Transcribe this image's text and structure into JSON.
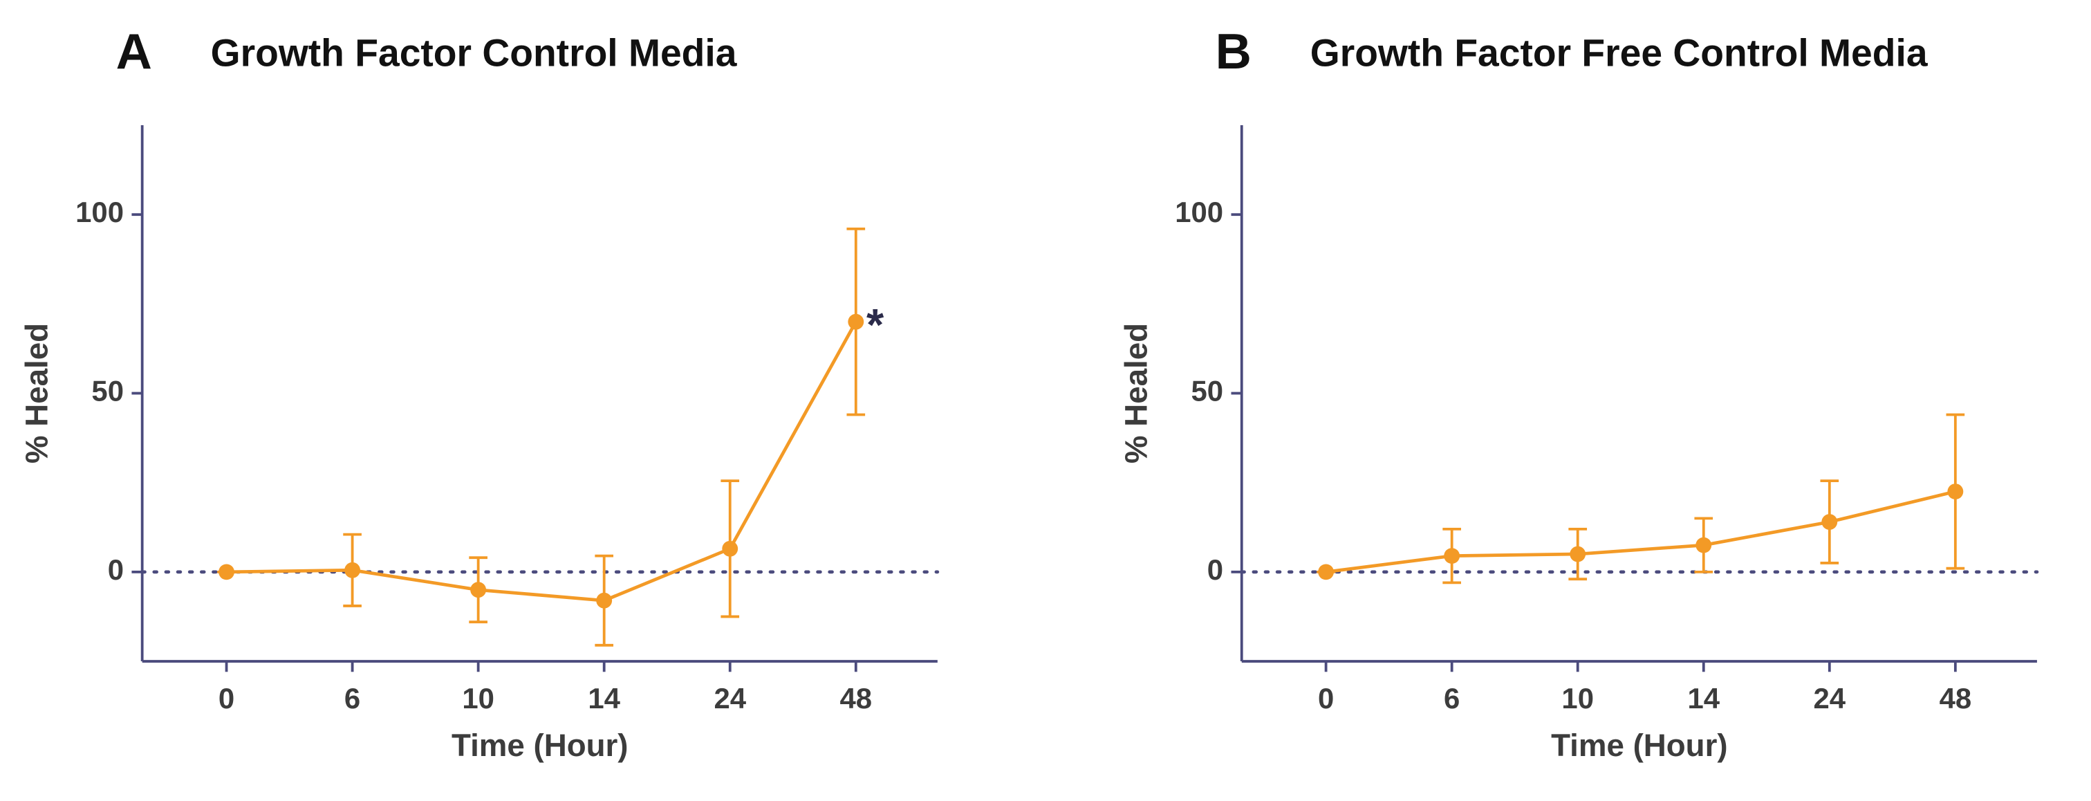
{
  "chart_data": [
    {
      "type": "line",
      "panel_label": "A",
      "title": "Growth Factor Control Media",
      "xlabel": "Time (Hour)",
      "ylabel": "% Healed",
      "categories": [
        "0",
        "6",
        "10",
        "14",
        "24",
        "48"
      ],
      "series": [
        {
          "color": "#f39a26",
          "values": [
            0,
            0.5,
            -5,
            -8,
            6.5,
            70
          ],
          "errors": [
            0,
            10,
            9,
            12.5,
            19,
            26
          ]
        }
      ],
      "ylim": [
        -25,
        125
      ],
      "yticks": [
        0,
        50,
        100
      ],
      "reference_line": 0,
      "annotations": [
        {
          "text": "*",
          "category": "48"
        }
      ]
    },
    {
      "type": "line",
      "panel_label": "B",
      "title": "Growth Factor Free Control Media",
      "xlabel": "Time (Hour)",
      "ylabel": "% Healed",
      "categories": [
        "0",
        "6",
        "10",
        "14",
        "24",
        "48"
      ],
      "series": [
        {
          "color": "#f39a26",
          "values": [
            0,
            4.5,
            5,
            7.5,
            14,
            22.5
          ],
          "errors": [
            0,
            7.5,
            7,
            7.5,
            11.5,
            21.5
          ]
        }
      ],
      "ylim": [
        -25,
        125
      ],
      "yticks": [
        0,
        50,
        100
      ],
      "reference_line": 0
    }
  ]
}
